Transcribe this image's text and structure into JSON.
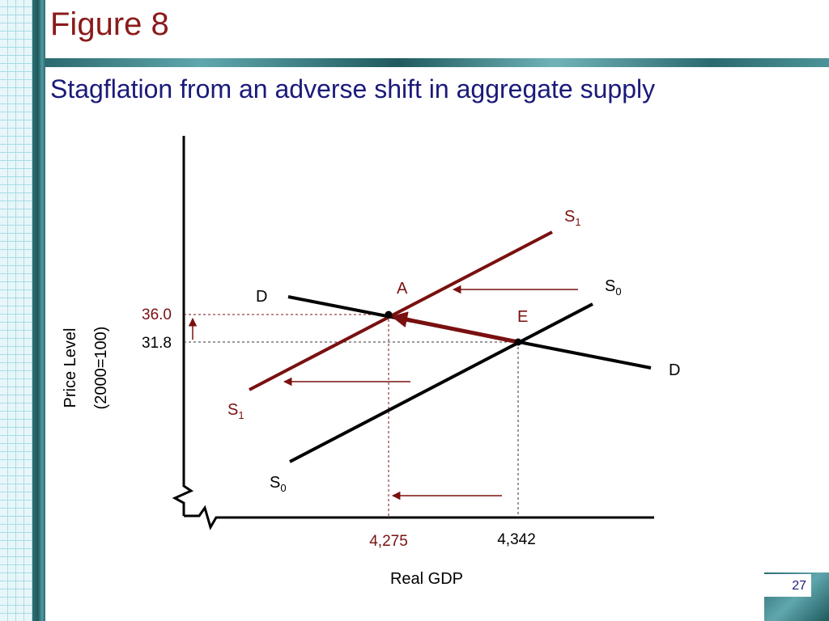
{
  "title": "Figure 8",
  "subtitle": "Stagflation from an adverse shift in aggregate supply",
  "page_number": "27",
  "colors": {
    "title": "#8b1a1a",
    "subtitle": "#1a1a7a",
    "accent_red": "#7a1010",
    "black": "#000000"
  },
  "axes": {
    "y_label_line1": "Price Level",
    "y_label_line2": "(2000=100)",
    "x_label": "Real GDP"
  },
  "values": {
    "price_new": "36.0",
    "price_old": "31.8",
    "gdp_new": "4,275",
    "gdp_old": "4,342"
  },
  "curves": {
    "s1_top": {
      "main": "S",
      "sub": "1"
    },
    "s1_bottom": {
      "main": "S",
      "sub": "1"
    },
    "s0_top": {
      "main": "S",
      "sub": "0"
    },
    "s0_bottom": {
      "main": "S",
      "sub": "0"
    },
    "d_left": "D",
    "d_right": "D"
  },
  "points": {
    "a": "A",
    "e": "E"
  }
}
